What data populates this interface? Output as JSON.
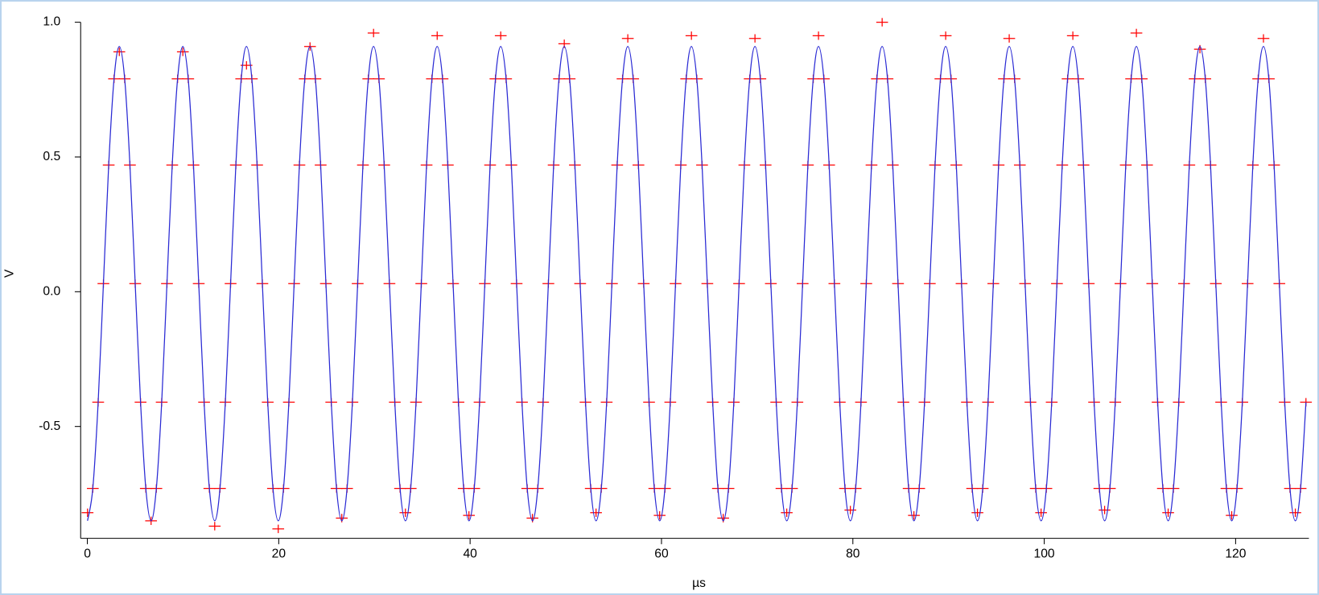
{
  "chart_data": {
    "type": "scatter",
    "xlabel": "µs",
    "ylabel": "V",
    "xlim": [
      -0.7,
      127.66
    ],
    "ylim": [
      -0.915,
      1.0
    ],
    "xticks": [
      0,
      20,
      40,
      60,
      80,
      100,
      120
    ],
    "yticks": [
      -0.5,
      {
        "value": 0,
        "label": "0.0"
      },
      0.5,
      {
        "value": 1,
        "label": "1.0"
      }
    ],
    "x": [
      0.02,
      0.57,
      1.13,
      1.68,
      2.23,
      2.79,
      3.34,
      3.9,
      4.45,
      5,
      5.56,
      6.11,
      6.66,
      7.21,
      7.77,
      8.32,
      8.87,
      9.43,
      9.98,
      10.54,
      11.09,
      11.64,
      12.2,
      12.75,
      13.31,
      13.86,
      14.42,
      14.97,
      15.52,
      16.08,
      16.63,
      17.19,
      17.74,
      18.29,
      18.85,
      19.4,
      19.95,
      20.5,
      21.06,
      21.61,
      22.16,
      22.72,
      23.27,
      23.83,
      24.38,
      24.93,
      25.49,
      26.04,
      26.59,
      27.14,
      27.7,
      28.25,
      28.8,
      29.36,
      29.91,
      30.47,
      31.02,
      31.57,
      32.13,
      32.68,
      33.24,
      33.79,
      34.35,
      34.9,
      35.45,
      36.01,
      36.56,
      37.12,
      37.67,
      38.22,
      38.78,
      39.33,
      39.88,
      40.43,
      40.99,
      41.54,
      42.09,
      42.65,
      43.2,
      43.76,
      44.31,
      44.86,
      45.42,
      45.97,
      46.52,
      47.07,
      47.63,
      48.18,
      48.73,
      49.29,
      49.84,
      50.4,
      50.95,
      51.5,
      52.06,
      52.61,
      53.16,
      53.71,
      54.27,
      54.82,
      55.37,
      55.93,
      56.48,
      57.04,
      57.59,
      58.14,
      58.7,
      59.25,
      59.81,
      60.36,
      60.92,
      61.47,
      62.02,
      62.58,
      63.13,
      63.69,
      64.24,
      64.79,
      65.35,
      65.9,
      66.45,
      67,
      67.56,
      68.11,
      68.66,
      69.22,
      69.77,
      70.33,
      70.88,
      71.43,
      71.99,
      72.54,
      73.09,
      73.64,
      74.2,
      74.75,
      75.3,
      75.86,
      76.41,
      76.97,
      77.52,
      78.07,
      78.63,
      79.18,
      79.74,
      80.29,
      80.85,
      81.4,
      81.95,
      82.51,
      83.06,
      83.62,
      84.17,
      84.72,
      85.28,
      85.83,
      86.38,
      86.93,
      87.49,
      88.04,
      88.59,
      89.15,
      89.7,
      90.26,
      90.81,
      91.36,
      91.92,
      92.47,
      93.02,
      93.57,
      94.13,
      94.68,
      95.23,
      95.79,
      96.34,
      96.9,
      97.45,
      98,
      98.56,
      99.11,
      99.67,
      100.22,
      100.78,
      101.33,
      101.88,
      102.44,
      102.99,
      103.55,
      104.1,
      104.65,
      105.21,
      105.76,
      106.31,
      106.86,
      107.42,
      107.97,
      108.52,
      109.08,
      109.63,
      110.19,
      110.74,
      111.29,
      111.85,
      112.4,
      112.95,
      113.5,
      114.06,
      114.61,
      115.16,
      115.72,
      116.27,
      116.83,
      117.38,
      117.93,
      118.49,
      119.04,
      119.59,
      120.14,
      120.7,
      121.25,
      121.8,
      122.36,
      122.91,
      123.47,
      124.02,
      124.57,
      125.13,
      125.68,
      126.24,
      126.79,
      127.35
    ],
    "series": [
      {
        "mode": "markers",
        "color": "#ff0000",
        "values": [
          -0.82,
          -0.73,
          -0.41,
          0.03,
          0.47,
          0.79,
          0.89,
          0.79,
          0.47,
          0.03,
          -0.41,
          -0.73,
          -0.85,
          -0.73,
          -0.41,
          0.03,
          0.47,
          0.79,
          0.89,
          0.79,
          0.47,
          0.03,
          -0.41,
          -0.73,
          -0.87,
          -0.73,
          -0.41,
          0.03,
          0.47,
          0.79,
          0.84,
          0.79,
          0.47,
          0.03,
          -0.41,
          -0.73,
          -0.88,
          -0.73,
          -0.41,
          0.03,
          0.47,
          0.79,
          0.91,
          0.79,
          0.47,
          0.03,
          -0.41,
          -0.73,
          -0.84,
          -0.73,
          -0.41,
          0.03,
          0.47,
          0.79,
          0.96,
          0.79,
          0.47,
          0.03,
          -0.41,
          -0.73,
          -0.82,
          -0.73,
          -0.41,
          0.03,
          0.47,
          0.79,
          0.95,
          0.79,
          0.47,
          0.03,
          -0.41,
          -0.73,
          -0.83,
          -0.73,
          -0.41,
          0.03,
          0.47,
          0.79,
          0.95,
          0.79,
          0.47,
          0.03,
          -0.41,
          -0.73,
          -0.84,
          -0.73,
          -0.41,
          0.03,
          0.47,
          0.79,
          0.92,
          0.79,
          0.47,
          0.03,
          -0.41,
          -0.73,
          -0.82,
          -0.73,
          -0.41,
          0.03,
          0.47,
          0.79,
          0.94,
          0.79,
          0.47,
          0.03,
          -0.41,
          -0.73,
          -0.83,
          -0.73,
          -0.41,
          0.03,
          0.47,
          0.79,
          0.95,
          0.79,
          0.47,
          0.03,
          -0.41,
          -0.73,
          -0.84,
          -0.73,
          -0.41,
          0.03,
          0.47,
          0.79,
          0.94,
          0.79,
          0.47,
          0.03,
          -0.41,
          -0.73,
          -0.82,
          -0.73,
          -0.41,
          0.03,
          0.47,
          0.79,
          0.95,
          0.79,
          0.47,
          0.03,
          -0.41,
          -0.73,
          -0.81,
          -0.73,
          -0.41,
          0.03,
          0.47,
          0.79,
          1.0,
          0.79,
          0.47,
          0.03,
          -0.41,
          -0.73,
          -0.83,
          -0.73,
          -0.41,
          0.03,
          0.47,
          0.79,
          0.95,
          0.79,
          0.47,
          0.03,
          -0.41,
          -0.73,
          -0.82,
          -0.73,
          -0.41,
          0.03,
          0.47,
          0.79,
          0.94,
          0.79,
          0.47,
          0.03,
          -0.41,
          -0.73,
          -0.82,
          -0.73,
          -0.41,
          0.03,
          0.47,
          0.79,
          0.95,
          0.79,
          0.47,
          0.03,
          -0.41,
          -0.73,
          -0.81,
          -0.73,
          -0.41,
          0.03,
          0.47,
          0.79,
          0.96,
          0.79,
          0.47,
          0.03,
          -0.41,
          -0.73,
          -0.82,
          -0.73,
          -0.41,
          0.03,
          0.47,
          0.79,
          0.9,
          0.79,
          0.47,
          0.03,
          -0.41,
          -0.73,
          -0.83,
          -0.73,
          -0.41,
          0.03,
          0.47,
          0.79,
          0.94,
          0.79,
          0.47,
          0.03,
          -0.41,
          -0.73,
          -0.82,
          -0.73,
          -0.41
        ]
      },
      {
        "mode": "line",
        "color": "#2a2ad4",
        "values": [
          -0.85,
          -0.73,
          -0.41,
          0.03,
          0.47,
          0.79,
          0.91,
          0.79,
          0.47,
          0.03,
          -0.41,
          -0.73,
          -0.85,
          -0.73,
          -0.41,
          0.03,
          0.47,
          0.79,
          0.91,
          0.79,
          0.47,
          0.03,
          -0.41,
          -0.73,
          -0.85,
          -0.73,
          -0.41,
          0.03,
          0.47,
          0.79,
          0.91,
          0.79,
          0.47,
          0.03,
          -0.41,
          -0.73,
          -0.85,
          -0.73,
          -0.41,
          0.03,
          0.47,
          0.79,
          0.91,
          0.79,
          0.47,
          0.03,
          -0.41,
          -0.73,
          -0.85,
          -0.73,
          -0.41,
          0.03,
          0.47,
          0.79,
          0.91,
          0.79,
          0.47,
          0.03,
          -0.41,
          -0.73,
          -0.85,
          -0.73,
          -0.41,
          0.03,
          0.47,
          0.79,
          0.91,
          0.79,
          0.47,
          0.03,
          -0.41,
          -0.73,
          -0.85,
          -0.73,
          -0.41,
          0.03,
          0.47,
          0.79,
          0.91,
          0.79,
          0.47,
          0.03,
          -0.41,
          -0.73,
          -0.85,
          -0.73,
          -0.41,
          0.03,
          0.47,
          0.79,
          0.91,
          0.79,
          0.47,
          0.03,
          -0.41,
          -0.73,
          -0.85,
          -0.73,
          -0.41,
          0.03,
          0.47,
          0.79,
          0.91,
          0.79,
          0.47,
          0.03,
          -0.41,
          -0.73,
          -0.85,
          -0.73,
          -0.41,
          0.03,
          0.47,
          0.79,
          0.91,
          0.79,
          0.47,
          0.03,
          -0.41,
          -0.73,
          -0.85,
          -0.73,
          -0.41,
          0.03,
          0.47,
          0.79,
          0.91,
          0.79,
          0.47,
          0.03,
          -0.41,
          -0.73,
          -0.85,
          -0.73,
          -0.41,
          0.03,
          0.47,
          0.79,
          0.91,
          0.79,
          0.47,
          0.03,
          -0.41,
          -0.73,
          -0.85,
          -0.73,
          -0.41,
          0.03,
          0.47,
          0.79,
          0.91,
          0.79,
          0.47,
          0.03,
          -0.41,
          -0.73,
          -0.85,
          -0.73,
          -0.41,
          0.03,
          0.47,
          0.79,
          0.91,
          0.79,
          0.47,
          0.03,
          -0.41,
          -0.73,
          -0.85,
          -0.73,
          -0.41,
          0.03,
          0.47,
          0.79,
          0.91,
          0.79,
          0.47,
          0.03,
          -0.41,
          -0.73,
          -0.85,
          -0.73,
          -0.41,
          0.03,
          0.47,
          0.79,
          0.91,
          0.79,
          0.47,
          0.03,
          -0.41,
          -0.73,
          -0.85,
          -0.73,
          -0.41,
          0.03,
          0.47,
          0.79,
          0.91,
          0.79,
          0.47,
          0.03,
          -0.41,
          -0.73,
          -0.85,
          -0.73,
          -0.41,
          0.03,
          0.47,
          0.79,
          0.91,
          0.79,
          0.47,
          0.03,
          -0.41,
          -0.73,
          -0.85,
          -0.73,
          -0.41,
          0.03,
          0.47,
          0.79,
          0.91,
          0.79,
          0.47,
          0.03,
          -0.41,
          -0.73,
          -0.85,
          -0.73,
          -0.41
        ]
      }
    ]
  }
}
